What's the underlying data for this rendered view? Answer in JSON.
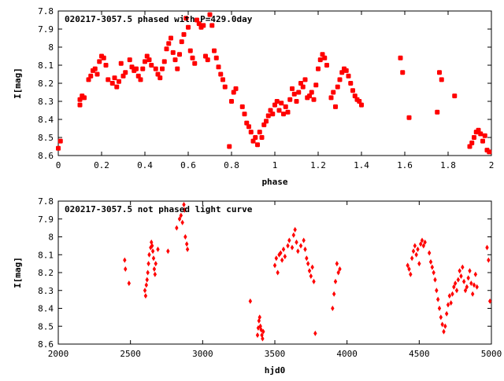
{
  "colors": {
    "marker": "#ff0000",
    "axis": "#000000",
    "background": "#ffffff"
  },
  "chart_data": [
    {
      "type": "scatter",
      "title": "020217-3057.5 phased with P=429.0day",
      "xlabel": "phase",
      "ylabel": "I[mag]",
      "xlim": [
        0,
        2
      ],
      "ylim": [
        8.6,
        7.8
      ],
      "y_inverted": true,
      "grid": false,
      "legend": "none",
      "marker": "filled-square",
      "x_ticks": [
        "0",
        "0.2",
        "0.4",
        "0.6",
        "0.8",
        "1",
        "1.2",
        "1.4",
        "1.6",
        "1.8",
        "2"
      ],
      "y_ticks": [
        "7.8",
        "7.9",
        "8",
        "8.1",
        "8.2",
        "8.3",
        "8.4",
        "8.5",
        "8.6"
      ],
      "points": [
        [
          0.0,
          8.56
        ],
        [
          0.01,
          8.52
        ],
        [
          0.1,
          8.29
        ],
        [
          0.1,
          8.32
        ],
        [
          0.11,
          8.27
        ],
        [
          0.12,
          8.28
        ],
        [
          0.14,
          8.18
        ],
        [
          0.15,
          8.16
        ],
        [
          0.16,
          8.13
        ],
        [
          0.17,
          8.12
        ],
        [
          0.18,
          8.15
        ],
        [
          0.19,
          8.08
        ],
        [
          0.2,
          8.05
        ],
        [
          0.21,
          8.06
        ],
        [
          0.22,
          8.1
        ],
        [
          0.23,
          8.18
        ],
        [
          0.25,
          8.2
        ],
        [
          0.26,
          8.17
        ],
        [
          0.27,
          8.22
        ],
        [
          0.28,
          8.19
        ],
        [
          0.29,
          8.09
        ],
        [
          0.3,
          8.16
        ],
        [
          0.31,
          8.14
        ],
        [
          0.33,
          8.07
        ],
        [
          0.34,
          8.11
        ],
        [
          0.35,
          8.13
        ],
        [
          0.36,
          8.12
        ],
        [
          0.37,
          8.16
        ],
        [
          0.38,
          8.18
        ],
        [
          0.39,
          8.12
        ],
        [
          0.4,
          8.08
        ],
        [
          0.41,
          8.05
        ],
        [
          0.42,
          8.07
        ],
        [
          0.43,
          8.1
        ],
        [
          0.45,
          8.12
        ],
        [
          0.46,
          8.15
        ],
        [
          0.47,
          8.17
        ],
        [
          0.48,
          8.12
        ],
        [
          0.49,
          8.08
        ],
        [
          0.5,
          8.01
        ],
        [
          0.51,
          7.98
        ],
        [
          0.52,
          7.95
        ],
        [
          0.53,
          8.03
        ],
        [
          0.54,
          8.07
        ],
        [
          0.55,
          8.12
        ],
        [
          0.56,
          8.04
        ],
        [
          0.57,
          7.97
        ],
        [
          0.58,
          7.93
        ],
        [
          0.59,
          7.84
        ],
        [
          0.6,
          7.89
        ],
        [
          0.61,
          8.02
        ],
        [
          0.62,
          8.06
        ],
        [
          0.63,
          8.09
        ],
        [
          0.64,
          7.85
        ],
        [
          0.65,
          7.87
        ],
        [
          0.66,
          7.89
        ],
        [
          0.67,
          7.88
        ],
        [
          0.68,
          8.05
        ],
        [
          0.69,
          8.07
        ],
        [
          0.7,
          7.82
        ],
        [
          0.71,
          7.88
        ],
        [
          0.72,
          8.02
        ],
        [
          0.73,
          8.06
        ],
        [
          0.74,
          8.11
        ],
        [
          0.75,
          8.15
        ],
        [
          0.76,
          8.18
        ],
        [
          0.77,
          8.22
        ],
        [
          0.79,
          8.55
        ],
        [
          0.8,
          8.3
        ],
        [
          0.81,
          8.25
        ],
        [
          0.82,
          8.23
        ],
        [
          0.85,
          8.33
        ],
        [
          0.86,
          8.37
        ],
        [
          0.87,
          8.42
        ],
        [
          0.88,
          8.44
        ],
        [
          0.89,
          8.47
        ],
        [
          0.9,
          8.52
        ],
        [
          0.91,
          8.5
        ],
        [
          0.92,
          8.54
        ],
        [
          0.93,
          8.47
        ],
        [
          0.94,
          8.5
        ],
        [
          0.95,
          8.43
        ],
        [
          0.96,
          8.41
        ],
        [
          0.97,
          8.38
        ],
        [
          0.98,
          8.35
        ],
        [
          0.99,
          8.37
        ],
        [
          1.0,
          8.32
        ],
        [
          1.01,
          8.3
        ],
        [
          1.02,
          8.35
        ],
        [
          1.03,
          8.31
        ],
        [
          1.04,
          8.37
        ],
        [
          1.05,
          8.33
        ],
        [
          1.06,
          8.36
        ],
        [
          1.07,
          8.29
        ],
        [
          1.08,
          8.23
        ],
        [
          1.09,
          8.26
        ],
        [
          1.1,
          8.3
        ],
        [
          1.11,
          8.25
        ],
        [
          1.12,
          8.2
        ],
        [
          1.13,
          8.22
        ],
        [
          1.14,
          8.18
        ],
        [
          1.15,
          8.28
        ],
        [
          1.16,
          8.27
        ],
        [
          1.17,
          8.25
        ],
        [
          1.18,
          8.29
        ],
        [
          1.19,
          8.21
        ],
        [
          1.2,
          8.12
        ],
        [
          1.21,
          8.07
        ],
        [
          1.22,
          8.04
        ],
        [
          1.23,
          8.06
        ],
        [
          1.24,
          8.1
        ],
        [
          1.26,
          8.28
        ],
        [
          1.27,
          8.25
        ],
        [
          1.28,
          8.33
        ],
        [
          1.29,
          8.22
        ],
        [
          1.3,
          8.18
        ],
        [
          1.31,
          8.14
        ],
        [
          1.32,
          8.12
        ],
        [
          1.33,
          8.13
        ],
        [
          1.34,
          8.16
        ],
        [
          1.35,
          8.2
        ],
        [
          1.36,
          8.24
        ],
        [
          1.37,
          8.27
        ],
        [
          1.38,
          8.29
        ],
        [
          1.39,
          8.3
        ],
        [
          1.4,
          8.32
        ],
        [
          1.58,
          8.06
        ],
        [
          1.59,
          8.14
        ],
        [
          1.62,
          8.39
        ],
        [
          1.75,
          8.36
        ],
        [
          1.76,
          8.14
        ],
        [
          1.77,
          8.18
        ],
        [
          1.83,
          8.27
        ],
        [
          1.9,
          8.55
        ],
        [
          1.91,
          8.53
        ],
        [
          1.92,
          8.5
        ],
        [
          1.93,
          8.47
        ],
        [
          1.94,
          8.46
        ],
        [
          1.95,
          8.48
        ],
        [
          1.96,
          8.52
        ],
        [
          1.97,
          8.49
        ],
        [
          1.98,
          8.57
        ],
        [
          1.99,
          8.58
        ]
      ]
    },
    {
      "type": "scatter",
      "title": "020217-3057.5 not phased light curve",
      "xlabel": "hjd0",
      "ylabel": "I[mag]",
      "xlim": [
        2000,
        5000
      ],
      "ylim": [
        8.6,
        7.8
      ],
      "y_inverted": true,
      "grid": false,
      "legend": "none",
      "marker": "filled-diamond",
      "x_ticks": [
        "2000",
        "2500",
        "3000",
        "3500",
        "4000",
        "4500",
        "5000"
      ],
      "y_ticks": [
        "7.8",
        "7.9",
        "8",
        "8.1",
        "8.2",
        "8.3",
        "8.4",
        "8.5",
        "8.6"
      ],
      "points": [
        [
          2460,
          8.13
        ],
        [
          2465,
          8.18
        ],
        [
          2490,
          8.26
        ],
        [
          2600,
          8.3
        ],
        [
          2605,
          8.33
        ],
        [
          2610,
          8.27
        ],
        [
          2615,
          8.24
        ],
        [
          2620,
          8.2
        ],
        [
          2625,
          8.15
        ],
        [
          2630,
          8.1
        ],
        [
          2640,
          8.06
        ],
        [
          2645,
          8.03
        ],
        [
          2650,
          8.05
        ],
        [
          2655,
          8.08
        ],
        [
          2660,
          8.12
        ],
        [
          2665,
          8.18
        ],
        [
          2670,
          8.21
        ],
        [
          2675,
          8.15
        ],
        [
          2690,
          8.07
        ],
        [
          2760,
          8.08
        ],
        [
          2820,
          7.95
        ],
        [
          2840,
          7.9
        ],
        [
          2850,
          7.88
        ],
        [
          2860,
          7.92
        ],
        [
          2870,
          7.82
        ],
        [
          2875,
          7.85
        ],
        [
          2880,
          8.0
        ],
        [
          2890,
          8.04
        ],
        [
          2895,
          8.07
        ],
        [
          3330,
          8.36
        ],
        [
          3380,
          8.55
        ],
        [
          3385,
          8.51
        ],
        [
          3390,
          8.47
        ],
        [
          3395,
          8.45
        ],
        [
          3400,
          8.5
        ],
        [
          3405,
          8.52
        ],
        [
          3410,
          8.55
        ],
        [
          3415,
          8.57
        ],
        [
          3420,
          8.53
        ],
        [
          3500,
          8.16
        ],
        [
          3510,
          8.12
        ],
        [
          3520,
          8.2
        ],
        [
          3530,
          8.1
        ],
        [
          3540,
          8.09
        ],
        [
          3550,
          8.13
        ],
        [
          3560,
          8.07
        ],
        [
          3570,
          8.11
        ],
        [
          3590,
          8.05
        ],
        [
          3600,
          8.02
        ],
        [
          3620,
          8.06
        ],
        [
          3630,
          7.99
        ],
        [
          3640,
          7.96
        ],
        [
          3650,
          8.03
        ],
        [
          3660,
          8.08
        ],
        [
          3680,
          8.05
        ],
        [
          3700,
          8.02
        ],
        [
          3710,
          8.07
        ],
        [
          3720,
          8.12
        ],
        [
          3730,
          8.15
        ],
        [
          3740,
          8.19
        ],
        [
          3750,
          8.22
        ],
        [
          3760,
          8.17
        ],
        [
          3770,
          8.25
        ],
        [
          3780,
          8.54
        ],
        [
          3900,
          8.4
        ],
        [
          3910,
          8.32
        ],
        [
          3920,
          8.25
        ],
        [
          3930,
          8.15
        ],
        [
          3940,
          8.2
        ],
        [
          3950,
          8.18
        ],
        [
          4420,
          8.16
        ],
        [
          4430,
          8.18
        ],
        [
          4440,
          8.21
        ],
        [
          4450,
          8.12
        ],
        [
          4460,
          8.08
        ],
        [
          4470,
          8.05
        ],
        [
          4480,
          8.1
        ],
        [
          4490,
          8.07
        ],
        [
          4500,
          8.15
        ],
        [
          4510,
          8.04
        ],
        [
          4520,
          8.02
        ],
        [
          4530,
          8.05
        ],
        [
          4540,
          8.03
        ],
        [
          4570,
          8.09
        ],
        [
          4580,
          8.14
        ],
        [
          4590,
          8.17
        ],
        [
          4600,
          8.2
        ],
        [
          4610,
          8.24
        ],
        [
          4620,
          8.3
        ],
        [
          4630,
          8.35
        ],
        [
          4640,
          8.4
        ],
        [
          4650,
          8.45
        ],
        [
          4660,
          8.49
        ],
        [
          4670,
          8.53
        ],
        [
          4680,
          8.5
        ],
        [
          4690,
          8.43
        ],
        [
          4700,
          8.38
        ],
        [
          4710,
          8.33
        ],
        [
          4720,
          8.37
        ],
        [
          4730,
          8.32
        ],
        [
          4740,
          8.28
        ],
        [
          4750,
          8.26
        ],
        [
          4760,
          8.3
        ],
        [
          4770,
          8.24
        ],
        [
          4780,
          8.19
        ],
        [
          4790,
          8.22
        ],
        [
          4800,
          8.17
        ],
        [
          4810,
          8.25
        ],
        [
          4820,
          8.3
        ],
        [
          4830,
          8.28
        ],
        [
          4840,
          8.23
        ],
        [
          4850,
          8.19
        ],
        [
          4860,
          8.26
        ],
        [
          4870,
          8.32
        ],
        [
          4880,
          8.27
        ],
        [
          4890,
          8.21
        ],
        [
          4900,
          8.28
        ],
        [
          4970,
          8.06
        ],
        [
          4980,
          8.13
        ],
        [
          4990,
          8.36
        ]
      ]
    }
  ]
}
